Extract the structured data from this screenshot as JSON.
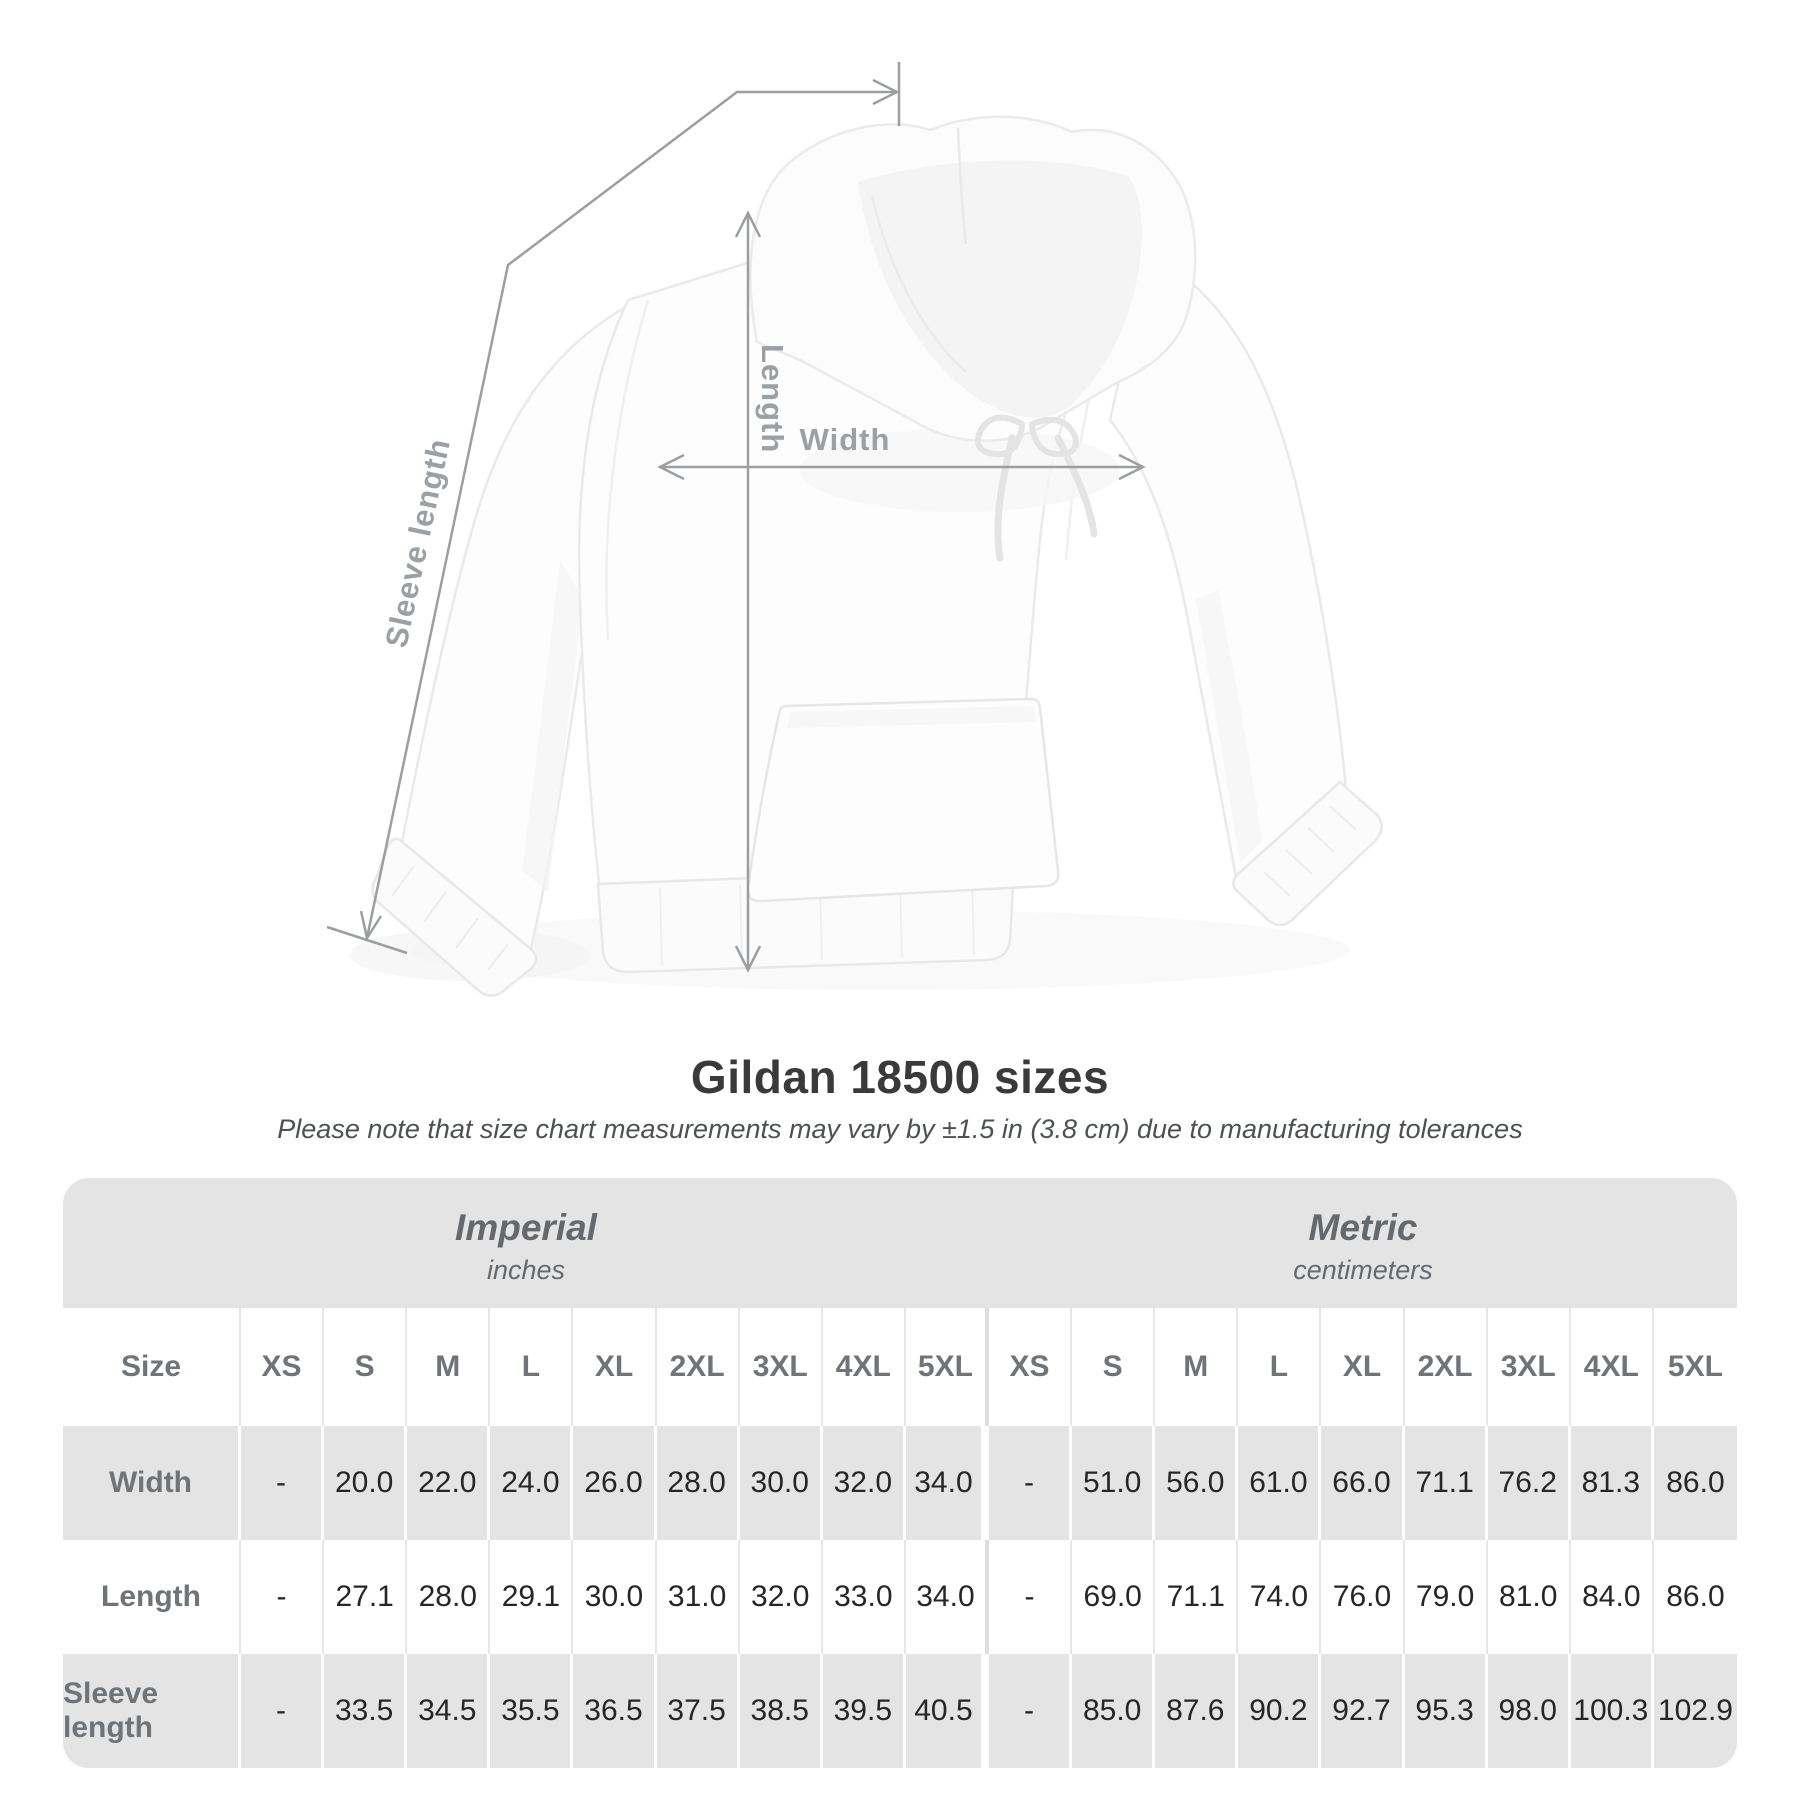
{
  "diagram": {
    "labels": {
      "length": "Length",
      "width": "Width",
      "sleeve_length": "Sleeve length"
    }
  },
  "title": "Gildan 18500 sizes",
  "subtitle": "Please note that size chart measurements may vary by ±1.5 in (3.8 cm) due to manufacturing tolerances",
  "table": {
    "groups": [
      {
        "label": "Imperial",
        "unit": "inches"
      },
      {
        "label": "Metric",
        "unit": "centimeters"
      }
    ],
    "size_header": "Size",
    "columns": [
      "XS",
      "S",
      "M",
      "L",
      "XL",
      "2XL",
      "3XL",
      "4XL",
      "5XL",
      "XS",
      "S",
      "M",
      "L",
      "XL",
      "2XL",
      "3XL",
      "4XL",
      "5XL"
    ],
    "rows": [
      {
        "label": "Width",
        "values": [
          "-",
          "20.0",
          "22.0",
          "24.0",
          "26.0",
          "28.0",
          "30.0",
          "32.0",
          "34.0",
          "-",
          "51.0",
          "56.0",
          "61.0",
          "66.0",
          "71.1",
          "76.2",
          "81.3",
          "86.0"
        ]
      },
      {
        "label": "Length",
        "values": [
          "-",
          "27.1",
          "28.0",
          "29.1",
          "30.0",
          "31.0",
          "32.0",
          "33.0",
          "34.0",
          "-",
          "69.0",
          "71.1",
          "74.0",
          "76.0",
          "79.0",
          "81.0",
          "84.0",
          "86.0"
        ]
      },
      {
        "label": "Sleeve length",
        "values": [
          "-",
          "33.5",
          "34.5",
          "35.5",
          "36.5",
          "37.5",
          "38.5",
          "39.5",
          "40.5",
          "-",
          "85.0",
          "87.6",
          "90.2",
          "92.7",
          "95.3",
          "98.0",
          "100.3",
          "102.9"
        ]
      }
    ]
  },
  "colors": {
    "measure_line": "#9b9fa2",
    "diagram_label": "#9aa0a4",
    "table_gray": "#e4e4e4",
    "header_text": "#6e7478",
    "value_text": "#262626",
    "title_text": "#3a3a3a"
  }
}
